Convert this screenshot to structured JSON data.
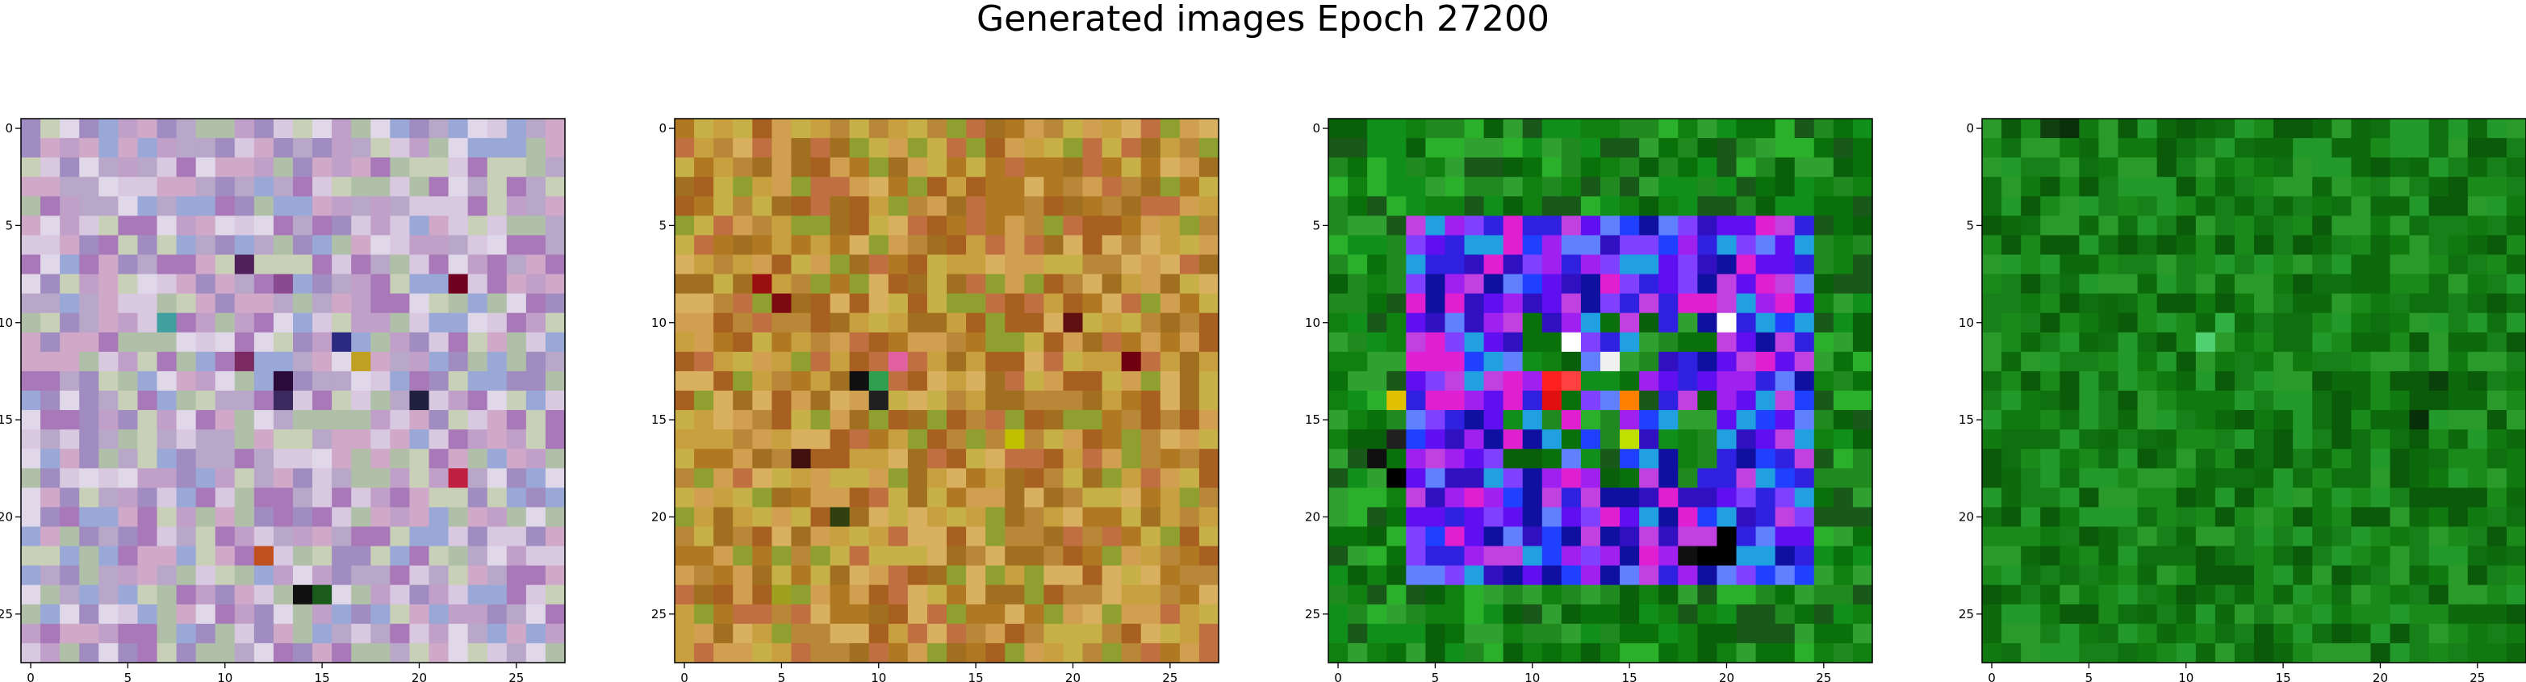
{
  "figure": {
    "title": "Generated images Epoch 27200"
  },
  "chart_data": [
    {
      "type": "heatmap",
      "subtitle": "",
      "size": [
        28,
        28
      ],
      "xlim": [
        -0.5,
        27.5
      ],
      "ylim": [
        27.5,
        -0.5
      ],
      "xticks": [
        0,
        5,
        10,
        15,
        20,
        25
      ],
      "yticks": [
        0,
        5,
        10,
        15,
        20,
        25
      ],
      "base_color": "#c9b8d2",
      "palette": [
        "#d8c8e0",
        "#b8a7c8",
        "#a08cc0",
        "#c0a0c8",
        "#e0d8e8",
        "#b0c0a8",
        "#d0a8c8",
        "#9aa8d8",
        "#c8d0b8",
        "#a878b8"
      ],
      "accent_pixels": [
        [
          13,
          13,
          "#2a0a3a"
        ],
        [
          14,
          13,
          "#3a2a60"
        ],
        [
          12,
          11,
          "#7a2a60"
        ],
        [
          7,
          11,
          "#50205a"
        ],
        [
          8,
          13,
          "#8a4a90"
        ],
        [
          11,
          16,
          "#2a2a80"
        ],
        [
          24,
          14,
          "#101010"
        ],
        [
          24,
          15,
          "#1a5a1a"
        ],
        [
          22,
          12,
          "#c05020"
        ],
        [
          8,
          22,
          "#700020"
        ],
        [
          14,
          20,
          "#202040"
        ],
        [
          10,
          7,
          "#40a0a0"
        ],
        [
          12,
          17,
          "#c0a020"
        ],
        [
          18,
          22,
          "#c02040"
        ]
      ]
    },
    {
      "type": "heatmap",
      "subtitle": "",
      "size": [
        28,
        28
      ],
      "xlim": [
        -0.5,
        27.5
      ],
      "ylim": [
        27.5,
        -0.5
      ],
      "xticks": [
        0,
        5,
        10,
        15,
        20,
        25
      ],
      "yticks": [
        0,
        5,
        10,
        15,
        20,
        25
      ],
      "base_color": "#c09030",
      "palette": [
        "#c8a040",
        "#b07820",
        "#d0a050",
        "#a86020",
        "#c8b048",
        "#b88838",
        "#d8b060",
        "#a07020",
        "#c07040",
        "#90a030"
      ],
      "accent_pixels": [
        [
          9,
          5,
          "#7a0a10"
        ],
        [
          8,
          4,
          "#9a1010"
        ],
        [
          13,
          9,
          "#101010"
        ],
        [
          14,
          10,
          "#202020"
        ],
        [
          12,
          11,
          "#e060a0"
        ],
        [
          13,
          10,
          "#30a050"
        ],
        [
          17,
          6,
          "#401010"
        ],
        [
          10,
          20,
          "#601010"
        ],
        [
          12,
          23,
          "#700010"
        ],
        [
          16,
          17,
          "#c0c000"
        ],
        [
          20,
          8,
          "#304010"
        ],
        [
          24,
          5,
          "#a0a020"
        ]
      ]
    },
    {
      "type": "heatmap",
      "subtitle": "",
      "size": [
        28,
        28
      ],
      "xlim": [
        -0.5,
        27.5
      ],
      "ylim": [
        27.5,
        -0.5
      ],
      "xticks": [
        0,
        5,
        10,
        15,
        20,
        25
      ],
      "yticks": [
        0,
        5,
        10,
        15,
        20,
        25
      ],
      "base_color": "#108010",
      "palette": [
        "#108010",
        "#208a20",
        "#0a700a",
        "#30a030",
        "#185818",
        "#10901a",
        "#2ab02a",
        "#0a600a"
      ],
      "ring": {
        "outer": [
          4,
          5,
          24,
          23
        ],
        "inner": [
          8,
          9,
          20,
          19
        ],
        "colors": [
          "#3020e0",
          "#6010f0",
          "#a020f0",
          "#2040ff",
          "#8040ff",
          "#1010a0",
          "#c040e0",
          "#20a0e0",
          "#e020d0",
          "#3010c0",
          "#6080ff"
        ]
      },
      "accent_pixels": [
        [
          13,
          11,
          "#ff2020"
        ],
        [
          13,
          12,
          "#ff4040"
        ],
        [
          14,
          11,
          "#e01010"
        ],
        [
          12,
          14,
          "#f0f0f0"
        ],
        [
          11,
          12,
          "#ffffff"
        ],
        [
          16,
          15,
          "#c0e000"
        ],
        [
          21,
          20,
          "#000000"
        ],
        [
          22,
          20,
          "#000000"
        ],
        [
          22,
          19,
          "#000000"
        ],
        [
          22,
          18,
          "#101010"
        ],
        [
          17,
          2,
          "#101010"
        ],
        [
          18,
          3,
          "#000000"
        ],
        [
          16,
          3,
          "#202020"
        ],
        [
          14,
          15,
          "#ff8000"
        ],
        [
          10,
          20,
          "#ffffff"
        ],
        [
          14,
          3,
          "#e0c000"
        ]
      ]
    },
    {
      "type": "heatmap",
      "subtitle": "",
      "size": [
        28,
        28
      ],
      "xlim": [
        -0.5,
        27.5
      ],
      "ylim": [
        27.5,
        -0.5
      ],
      "xticks": [
        0,
        5,
        10,
        15,
        20,
        25
      ],
      "yticks": [
        0,
        5,
        10,
        15,
        20,
        25
      ],
      "base_color": "#107a10",
      "palette": [
        "#107a10",
        "#1a8a1a",
        "#0c6a0c",
        "#22992a",
        "#0a5a0a",
        "#188018",
        "#2a9a2a",
        "#0e700e"
      ],
      "accent_pixels": [
        [
          11,
          11,
          "#50d070"
        ],
        [
          10,
          12,
          "#30b040"
        ],
        [
          0,
          3,
          "#104010"
        ],
        [
          0,
          4,
          "#0a300a"
        ],
        [
          13,
          23,
          "#0a400a"
        ],
        [
          15,
          22,
          "#083008"
        ]
      ]
    }
  ]
}
